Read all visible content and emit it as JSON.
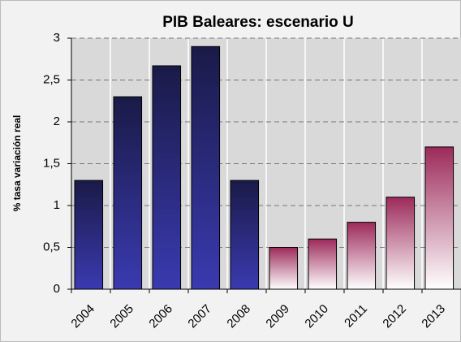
{
  "chart_data": {
    "type": "bar",
    "title": "PIB Baleares: escenario U",
    "y_label": "% tasa variación real",
    "categories": [
      "2004",
      "2005",
      "2006",
      "2007",
      "2008",
      "2009",
      "2010",
      "2011",
      "2012",
      "2013"
    ],
    "values": [
      1.3,
      2.3,
      2.67,
      2.9,
      1.3,
      0.5,
      0.6,
      0.8,
      1.1,
      1.7
    ],
    "colors": [
      [
        "#1a1a48",
        "#3a3ab0"
      ],
      [
        "#1a1a48",
        "#3a3ab0"
      ],
      [
        "#1a1a48",
        "#3a3ab0"
      ],
      [
        "#1a1a48",
        "#3a3ab0"
      ],
      [
        "#1a1a48",
        "#3a3ab0"
      ],
      [
        "#9c2a5a",
        "#ffffff"
      ],
      [
        "#9c2a5a",
        "#ffffff"
      ],
      [
        "#9c2a5a",
        "#ffffff"
      ],
      [
        "#9c2a5a",
        "#ffffff"
      ],
      [
        "#9c2a5a",
        "#ffffff"
      ]
    ],
    "ylim": [
      0,
      3
    ],
    "yticks": [
      0,
      {
        "value": 0.5,
        "label": "0,5"
      },
      1,
      {
        "value": 1.5,
        "label": "1,5"
      },
      2,
      {
        "value": 2.5,
        "label": "2,5"
      },
      3
    ],
    "grid": true
  }
}
